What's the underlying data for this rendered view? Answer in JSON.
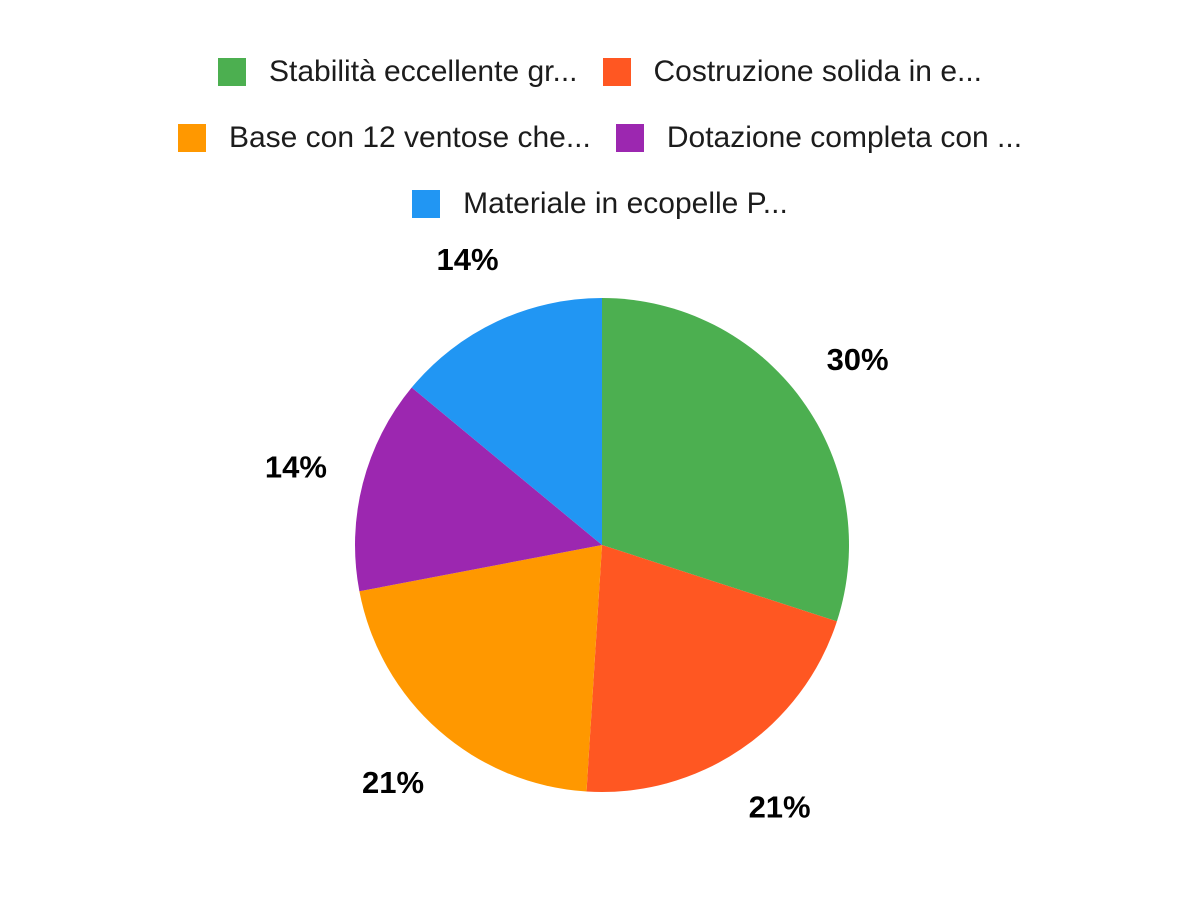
{
  "chart_data": {
    "type": "pie",
    "series": [
      {
        "label": "Stabilità eccellente gr...",
        "value": 30,
        "percent_label": "30%",
        "color": "#4caf50"
      },
      {
        "label": "Costruzione solida in e...",
        "value": 21,
        "percent_label": "21%",
        "color": "#ff5722"
      },
      {
        "label": "Base con 12 ventose che...",
        "value": 21,
        "percent_label": "21%",
        "color": "#ff9800"
      },
      {
        "label": "Dotazione completa con ...",
        "value": 14,
        "percent_label": "14%",
        "color": "#9c27b0"
      },
      {
        "label": "Materiale in ecopelle P...",
        "value": 14,
        "percent_label": "14%",
        "color": "#2196f3"
      }
    ],
    "total": 100,
    "start_angle_deg": 0,
    "direction": "clockwise",
    "legend_position": "top",
    "legend_rows": [
      [
        0,
        1
      ],
      [
        2,
        3
      ],
      [
        4
      ]
    ],
    "background_color": "#ffffff",
    "slice_label_color": "#000000",
    "legend_text_color": "#1c1c1c"
  }
}
